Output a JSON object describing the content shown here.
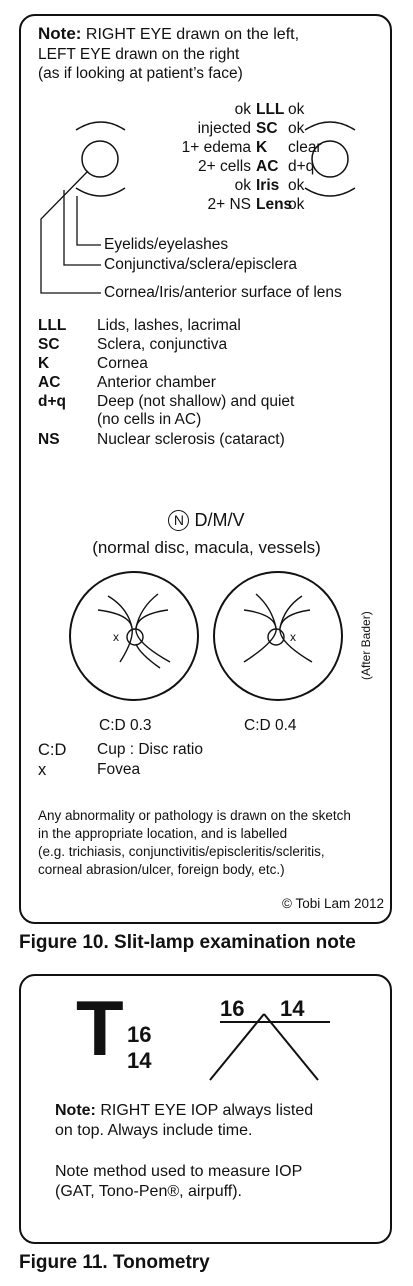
{
  "figure10": {
    "note_label": "Note:",
    "note_rest": "RIGHT EYE drawn on the left,",
    "note_line2": "LEFT EYE drawn on the right",
    "note_line3": "(as if looking at patient’s face)",
    "exam_rows": [
      {
        "right": "ok",
        "abbr": "LLL",
        "left": "ok"
      },
      {
        "right": "injected",
        "abbr": "SC",
        "left": "ok"
      },
      {
        "right": "1+ edema",
        "abbr": "K",
        "left": "clear"
      },
      {
        "right": "2+ cells",
        "abbr": "AC",
        "left": "d+q"
      },
      {
        "right": "ok",
        "abbr": "Iris",
        "left": "ok"
      },
      {
        "right": "2+ NS",
        "abbr": "Lens",
        "left": "ok"
      }
    ],
    "layer_labels": [
      "Eyelids/eyelashes",
      "Conjunctiva/sclera/episclera",
      "Cornea/Iris/anterior surface of lens"
    ],
    "legend": [
      {
        "abbr": "LLL",
        "text": "Lids, lashes, lacrimal"
      },
      {
        "abbr": "SC",
        "text": "Sclera, conjunctiva"
      },
      {
        "abbr": "K",
        "text": "Cornea"
      },
      {
        "abbr": "AC",
        "text": "Anterior chamber"
      },
      {
        "abbr": "d+q",
        "text": "Deep (not shallow) and quiet",
        "text2": "(no cells in AC)"
      },
      {
        "abbr": "NS",
        "text": "Nuclear sclerosis (cataract)"
      }
    ],
    "fundus_symbol": "N",
    "fundus_title": "D/M/V",
    "fundus_subtitle": "(normal disc, macula, vessels)",
    "fundus_marker": "x",
    "fundus_right_cd": "C:D 0.3",
    "fundus_left_cd": "C:D 0.4",
    "after": "(After Bader)",
    "cd_legend": [
      {
        "abbr": "C:D",
        "text": "Cup : Disc ratio"
      },
      {
        "abbr": "x",
        "text": "Fovea"
      }
    ],
    "footnote": [
      "Any abnormality or pathology is drawn on the sketch",
      "in the appropriate location, and is labelled",
      "(e.g. trichiasis, conjunctivitis/episcleritis/scleritis,",
      "corneal abrasion/ulcer, foreign body, etc.)"
    ],
    "copyright": "© Tobi Lam 2012",
    "caption": "Figure 10. Slit-lamp examination note"
  },
  "figure11": {
    "t_letter": "T",
    "t_top": "16",
    "t_bottom": "14",
    "cross_left": "16",
    "cross_right": "14",
    "note_label": "Note:",
    "note_rest": "RIGHT EYE IOP always listed",
    "note_line2": "on top. Always include time.",
    "method_line1": "Note method used to measure IOP",
    "method_line2": "(GAT, Tono-Pen®, airpuff).",
    "caption": "Figure 11. Tonometry"
  }
}
